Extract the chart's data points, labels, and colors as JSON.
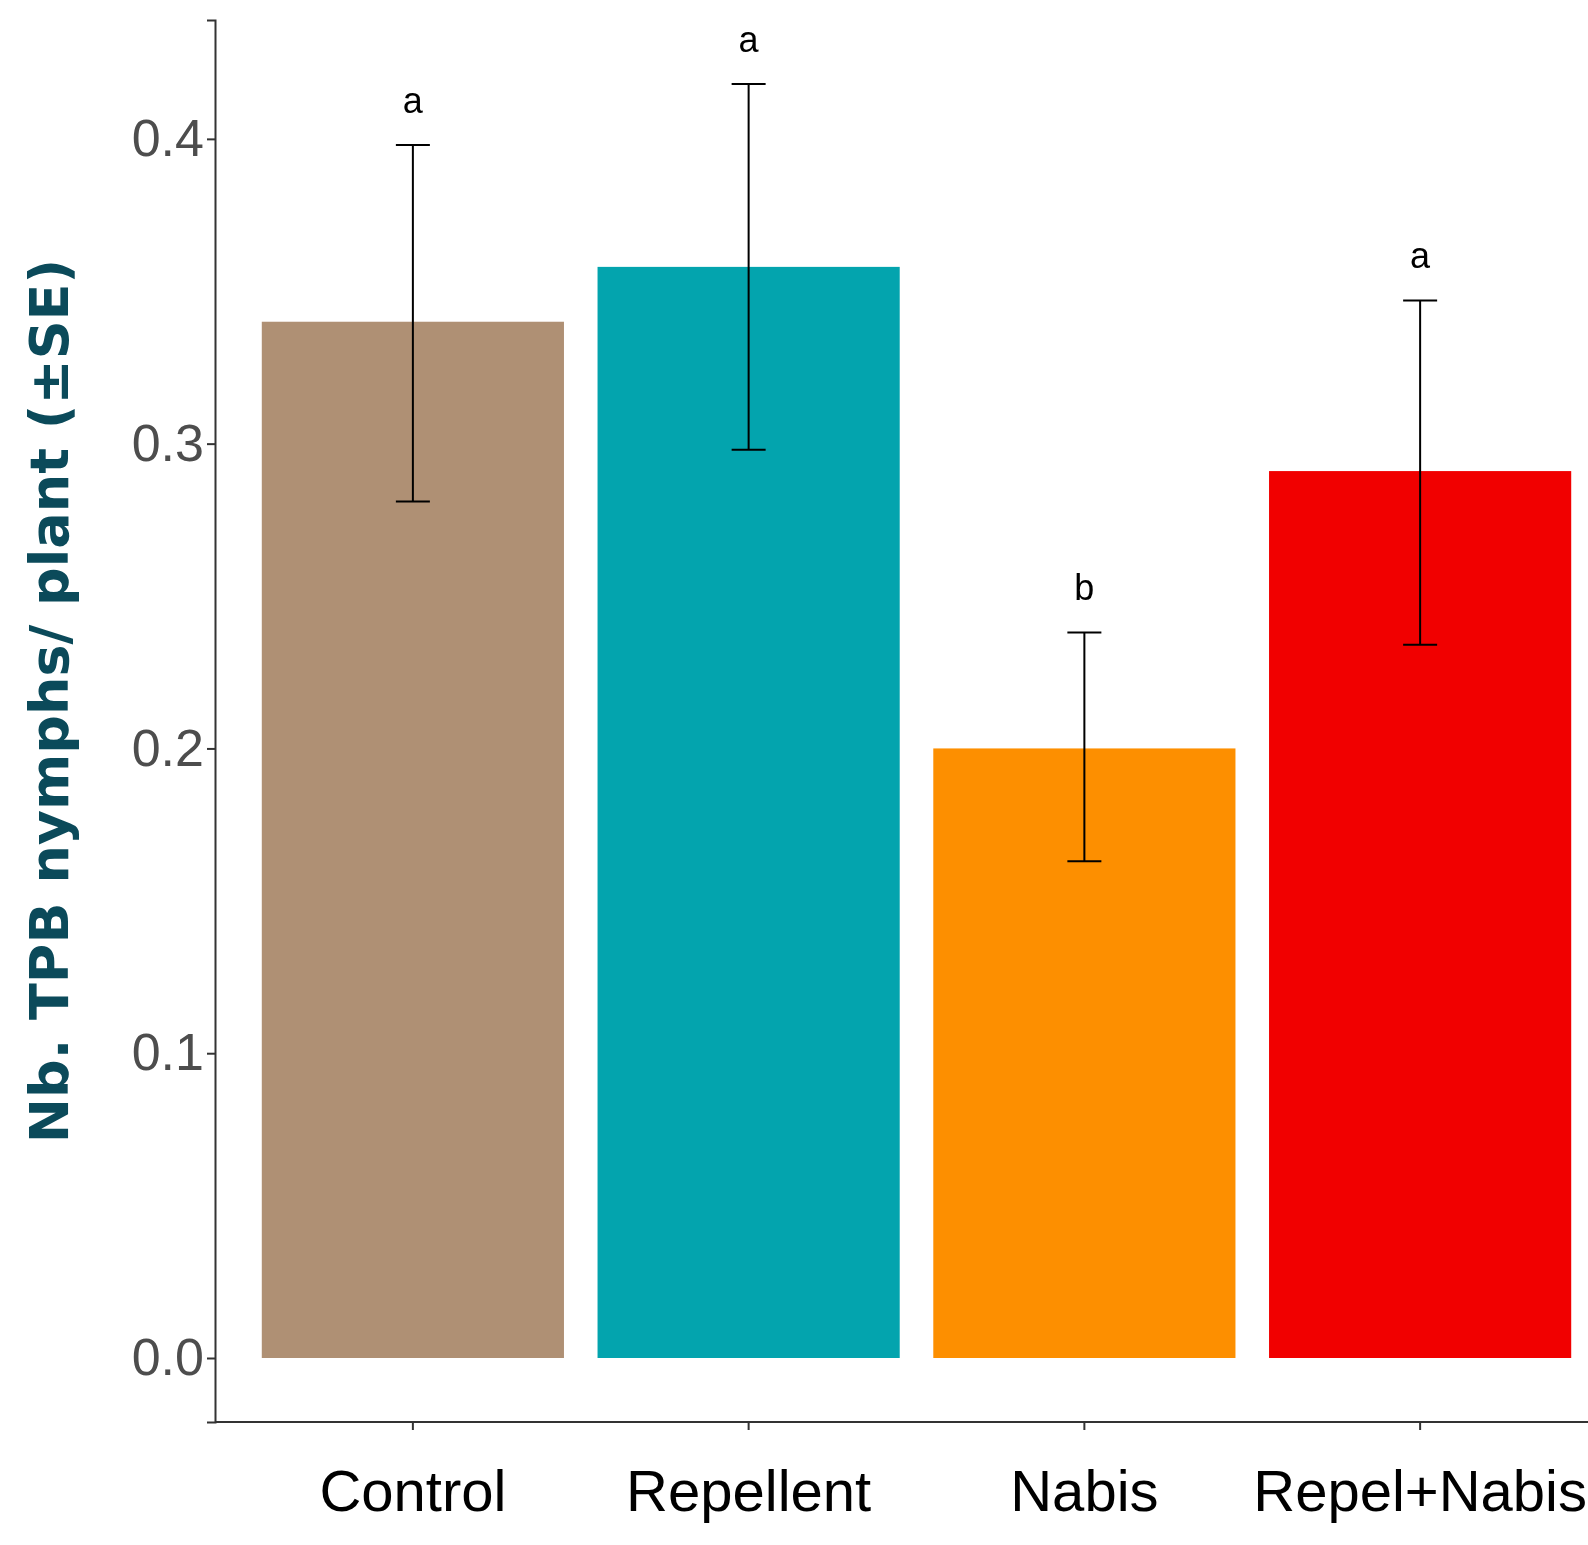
{
  "chart_data": {
    "type": "bar",
    "ylabel": "Nb. TPB nymphs/ plant (±SE)",
    "categories": [
      "Control",
      "Repellent",
      "Nabis",
      "Repel+Nabis"
    ],
    "values": [
      0.34,
      0.358,
      0.2,
      0.291
    ],
    "colors": [
      "#af9074",
      "#03a4ae",
      "#fd8f00",
      "#f10000"
    ],
    "errors": [
      [
        0.281,
        0.398
      ],
      [
        0.298,
        0.418
      ],
      [
        0.163,
        0.238
      ],
      [
        0.234,
        0.347
      ]
    ],
    "ylim": [
      -0.021,
      0.439
    ],
    "yticks": [
      {
        "value": 0,
        "label": "0.0"
      },
      0.1,
      0.2,
      0.3,
      0.4
    ],
    "grid": false,
    "annotations": [
      "a",
      "a",
      "b",
      "a"
    ]
  }
}
